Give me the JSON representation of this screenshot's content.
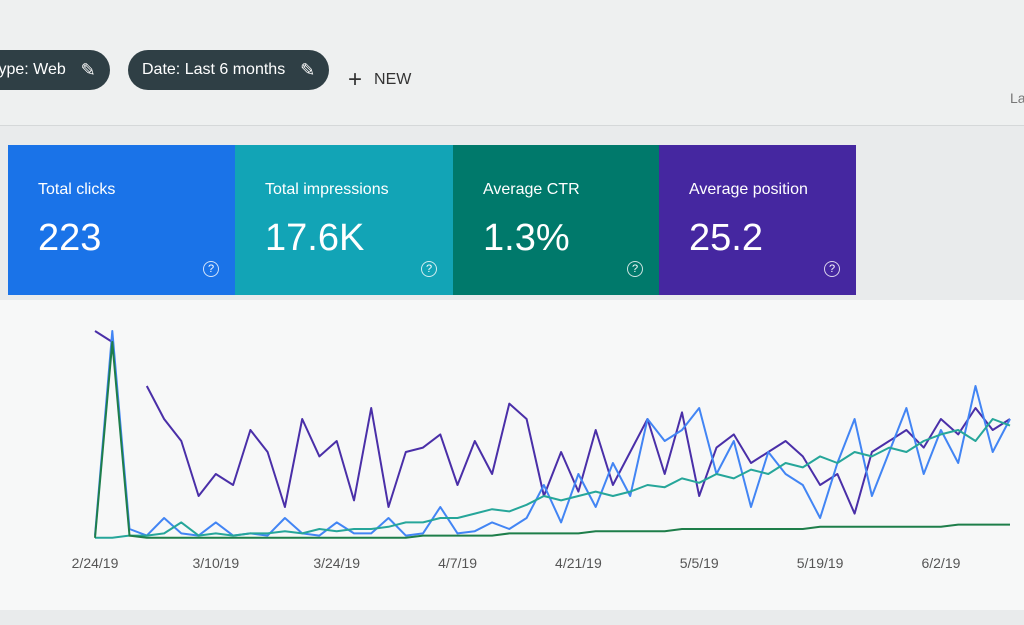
{
  "header": {
    "filters": [
      "type: Web",
      "Date: Last 6 months"
    ],
    "new_button": "NEW",
    "cut_text": "La"
  },
  "cards": [
    {
      "label": "Total clicks",
      "value": "223",
      "color": "#1a73e8"
    },
    {
      "label": "Total impressions",
      "value": "17.6K",
      "color": "#12a4b6"
    },
    {
      "label": "Average CTR",
      "value": "1.3%",
      "color": "#00796b"
    },
    {
      "label": "Average position",
      "value": "25.2",
      "color": "#4527a0"
    }
  ],
  "chart_data": {
    "type": "line",
    "categories": [
      "2/24/19",
      null,
      null,
      null,
      null,
      null,
      null,
      "3/10/19",
      null,
      null,
      null,
      null,
      null,
      null,
      "3/24/19",
      null,
      null,
      null,
      null,
      null,
      null,
      "4/7/19",
      null,
      null,
      null,
      null,
      null,
      null,
      "4/21/19",
      null,
      null,
      null,
      null,
      null,
      null,
      "5/5/19",
      null,
      null,
      null,
      null,
      null,
      null,
      "5/19/19",
      null,
      null,
      null,
      null,
      null,
      null,
      "6/2/19",
      null,
      null,
      null,
      null
    ],
    "ylim": [
      0,
      100
    ],
    "series": [
      {
        "color": "#4a2fa8",
        "values": [
          95,
          90,
          null,
          70,
          55,
          45,
          20,
          30,
          25,
          50,
          40,
          15,
          55,
          38,
          45,
          18,
          60,
          15,
          40,
          42,
          48,
          25,
          45,
          30,
          62,
          55,
          20,
          40,
          22,
          50,
          25,
          40,
          55,
          30,
          58,
          20,
          42,
          48,
          35,
          40,
          45,
          38,
          25,
          30,
          12,
          40,
          45,
          50,
          42,
          55,
          48,
          60,
          50,
          55
        ]
      },
      {
        "color": "#4285f4",
        "values": [
          2,
          95,
          5,
          2,
          10,
          3,
          2,
          8,
          2,
          3,
          2,
          10,
          3,
          2,
          8,
          3,
          3,
          10,
          2,
          3,
          15,
          3,
          4,
          8,
          5,
          10,
          25,
          8,
          30,
          15,
          35,
          20,
          55,
          45,
          50,
          60,
          30,
          45,
          15,
          40,
          30,
          25,
          10,
          35,
          55,
          20,
          40,
          60,
          30,
          50,
          35,
          70,
          40,
          55
        ]
      },
      {
        "color": "#26a69a",
        "values": [
          1,
          1,
          2,
          2,
          3,
          8,
          2,
          3,
          2,
          3,
          3,
          4,
          3,
          5,
          4,
          5,
          5,
          6,
          8,
          8,
          10,
          10,
          12,
          14,
          13,
          16,
          20,
          18,
          20,
          22,
          20,
          22,
          25,
          24,
          28,
          26,
          30,
          28,
          32,
          30,
          35,
          33,
          38,
          35,
          40,
          38,
          42,
          40,
          45,
          48,
          50,
          45,
          55,
          52
        ]
      },
      {
        "color": "#1e7e4a",
        "values": [
          1,
          90,
          2,
          1,
          1,
          1,
          1,
          1,
          1,
          1,
          1,
          1,
          1,
          1,
          1,
          1,
          1,
          1,
          1,
          2,
          2,
          2,
          2,
          2,
          3,
          3,
          3,
          3,
          3,
          4,
          4,
          4,
          4,
          4,
          5,
          5,
          5,
          5,
          5,
          5,
          5,
          5,
          6,
          6,
          6,
          6,
          6,
          6,
          6,
          6,
          7,
          7,
          7,
          7
        ]
      }
    ]
  }
}
